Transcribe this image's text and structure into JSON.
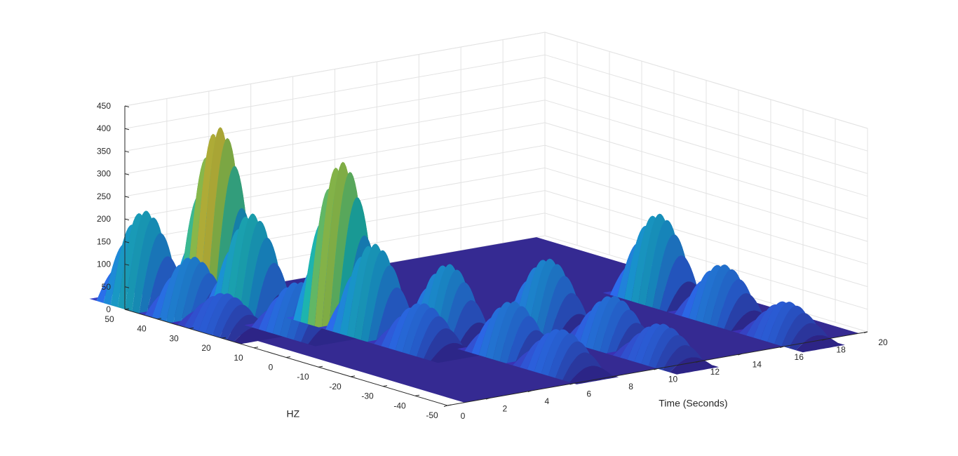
{
  "chart_data": {
    "type": "surface",
    "title": "",
    "xlabel": "Time (Seconds)",
    "ylabel": "HZ",
    "zlabel": "",
    "xlim": [
      0,
      20
    ],
    "ylim": [
      -50,
      50
    ],
    "zlim": [
      0,
      450
    ],
    "x_ticks": [
      "0",
      "2",
      "4",
      "6",
      "8",
      "10",
      "12",
      "14",
      "16",
      "18",
      "20"
    ],
    "y_ticks": [
      "-50",
      "-40",
      "-30",
      "-20",
      "-10",
      "0",
      "10",
      "20",
      "30",
      "40",
      "50"
    ],
    "z_ticks": [
      "0",
      "50",
      "100",
      "150",
      "200",
      "250",
      "300",
      "350",
      "400",
      "450"
    ],
    "grid": true,
    "colormap": [
      "#3e26a8",
      "#2e6cf3",
      "#1a9fde",
      "#1fbfb8",
      "#80cb58",
      "#eaba30"
    ],
    "series": [
      {
        "t_start": 0.0,
        "t_end": 2.0,
        "peak": 210,
        "freq_hz": 50
      },
      {
        "t_start": 0.0,
        "t_end": 2.0,
        "peak": 140,
        "freq_hz": 35
      },
      {
        "t_start": 0.0,
        "t_end": 2.0,
        "peak": 80,
        "freq_hz": 25
      },
      {
        "t_start": 2.0,
        "t_end": 4.0,
        "peak": 400,
        "freq_hz": 40
      },
      {
        "t_start": 2.0,
        "t_end": 4.0,
        "peak": 230,
        "freq_hz": 30
      },
      {
        "t_start": 2.0,
        "t_end": 4.0,
        "peak": 110,
        "freq_hz": 15
      },
      {
        "t_start": 4.0,
        "t_end": 6.0,
        "peak": 360,
        "freq_hz": 15
      },
      {
        "t_start": 4.0,
        "t_end": 6.0,
        "peak": 200,
        "freq_hz": 5
      },
      {
        "t_start": 4.0,
        "t_end": 6.0,
        "peak": 100,
        "freq_hz": -10
      },
      {
        "t_start": 6.0,
        "t_end": 8.0,
        "peak": 160,
        "freq_hz": -5
      },
      {
        "t_start": 6.0,
        "t_end": 8.0,
        "peak": 120,
        "freq_hz": -25
      },
      {
        "t_start": 6.0,
        "t_end": 8.0,
        "peak": 90,
        "freq_hz": -40
      },
      {
        "t_start": 10.0,
        "t_end": 12.0,
        "peak": 150,
        "freq_hz": -10
      },
      {
        "t_start": 10.0,
        "t_end": 12.0,
        "peak": 110,
        "freq_hz": -30
      },
      {
        "t_start": 10.0,
        "t_end": 12.0,
        "peak": 80,
        "freq_hz": -45
      },
      {
        "t_start": 16.0,
        "t_end": 18.0,
        "peak": 190,
        "freq_hz": -5
      },
      {
        "t_start": 16.0,
        "t_end": 18.0,
        "peak": 120,
        "freq_hz": -25
      },
      {
        "t_start": 16.0,
        "t_end": 18.0,
        "peak": 80,
        "freq_hz": -45
      }
    ]
  }
}
